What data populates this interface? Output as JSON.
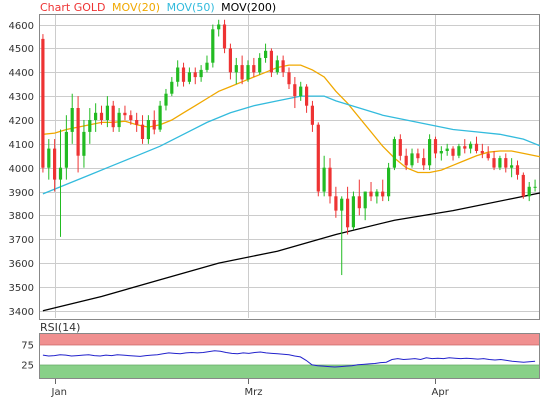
{
  "header": {
    "chart_label": "Chart GOLD",
    "legend": [
      {
        "label": "MOV(20)",
        "color": "#f0a800"
      },
      {
        "label": "MOV(50)",
        "color": "#33bbdd"
      },
      {
        "label": "MOV(200)",
        "color": "#000000"
      }
    ]
  },
  "rsi_panel": {
    "label": "RSI(14)",
    "ticks": [
      "75",
      "25"
    ],
    "overbought": 75,
    "oversold": 25,
    "line_color": "#2222cc",
    "overbought_color": "#f09090",
    "oversold_color": "#88d088"
  },
  "colors": {
    "up": "#22bb22",
    "down": "#ee3333",
    "grid": "#cccccc",
    "axis": "#666666"
  },
  "chart_data": {
    "type": "candlestick",
    "title": "Chart GOLD",
    "ylim": [
      3370,
      4640
    ],
    "y_ticks": [
      3400,
      3500,
      3600,
      3700,
      3800,
      3900,
      4000,
      4100,
      4200,
      4300,
      4400,
      4500,
      4600
    ],
    "x_labels": [
      {
        "label": "Jan",
        "index": 2
      },
      {
        "label": "Mrz",
        "index": 35
      },
      {
        "label": "Apr",
        "index": 67
      }
    ],
    "candles": [
      [
        4540,
        4560,
        3980,
        4000
      ],
      [
        4000,
        4120,
        3950,
        4080
      ],
      [
        4080,
        4120,
        3900,
        3950
      ],
      [
        3950,
        4160,
        3710,
        4000
      ],
      [
        4000,
        4220,
        3950,
        4150
      ],
      [
        4150,
        4310,
        4100,
        4250
      ],
      [
        4250,
        4300,
        3980,
        4050
      ],
      [
        4050,
        4200,
        4000,
        4150
      ],
      [
        4150,
        4250,
        4100,
        4200
      ],
      [
        4200,
        4270,
        4150,
        4230
      ],
      [
        4230,
        4260,
        4180,
        4200
      ],
      [
        4200,
        4300,
        4170,
        4260
      ],
      [
        4260,
        4280,
        4150,
        4170
      ],
      [
        4170,
        4250,
        4150,
        4230
      ],
      [
        4230,
        4260,
        4200,
        4220
      ],
      [
        4220,
        4240,
        4180,
        4200
      ],
      [
        4200,
        4230,
        4150,
        4180
      ],
      [
        4180,
        4220,
        4100,
        4120
      ],
      [
        4120,
        4220,
        4100,
        4200
      ],
      [
        4200,
        4240,
        4140,
        4160
      ],
      [
        4160,
        4280,
        4150,
        4260
      ],
      [
        4260,
        4330,
        4240,
        4310
      ],
      [
        4310,
        4380,
        4300,
        4360
      ],
      [
        4360,
        4450,
        4340,
        4420
      ],
      [
        4420,
        4440,
        4340,
        4360
      ],
      [
        4360,
        4420,
        4350,
        4400
      ],
      [
        4400,
        4420,
        4350,
        4380
      ],
      [
        4380,
        4430,
        4360,
        4410
      ],
      [
        4410,
        4470,
        4400,
        4440
      ],
      [
        4440,
        4600,
        4420,
        4580
      ],
      [
        4580,
        4620,
        4550,
        4600
      ],
      [
        4600,
        4620,
        4480,
        4500
      ],
      [
        4500,
        4520,
        4370,
        4400
      ],
      [
        4400,
        4460,
        4350,
        4430
      ],
      [
        4430,
        4470,
        4350,
        4370
      ],
      [
        4370,
        4450,
        4360,
        4430
      ],
      [
        4430,
        4460,
        4380,
        4400
      ],
      [
        4400,
        4480,
        4390,
        4460
      ],
      [
        4460,
        4520,
        4440,
        4490
      ],
      [
        4490,
        4500,
        4380,
        4400
      ],
      [
        4400,
        4470,
        4390,
        4450
      ],
      [
        4450,
        4470,
        4380,
        4400
      ],
      [
        4400,
        4420,
        4330,
        4350
      ],
      [
        4350,
        4380,
        4250,
        4300
      ],
      [
        4300,
        4360,
        4280,
        4340
      ],
      [
        4340,
        4350,
        4230,
        4260
      ],
      [
        4260,
        4280,
        4150,
        4180
      ],
      [
        4180,
        4190,
        3880,
        3900
      ],
      [
        3900,
        4050,
        3880,
        4000
      ],
      [
        4000,
        4040,
        3850,
        3880
      ],
      [
        3880,
        3920,
        3790,
        3820
      ],
      [
        3820,
        3880,
        3550,
        3870
      ],
      [
        3870,
        3920,
        3720,
        3750
      ],
      [
        3750,
        3900,
        3740,
        3880
      ],
      [
        3880,
        3950,
        3800,
        3830
      ],
      [
        3830,
        3900,
        3780,
        3900
      ],
      [
        3900,
        3940,
        3860,
        3880
      ],
      [
        3880,
        3910,
        3850,
        3900
      ],
      [
        3900,
        3950,
        3860,
        3880
      ],
      [
        3880,
        4020,
        3860,
        4000
      ],
      [
        4000,
        4130,
        3990,
        4120
      ],
      [
        4120,
        4140,
        4030,
        4050
      ],
      [
        4050,
        4080,
        3990,
        4010
      ],
      [
        4010,
        4080,
        4000,
        4060
      ],
      [
        4060,
        4080,
        4020,
        4040
      ],
      [
        4040,
        4080,
        3990,
        4010
      ],
      [
        4010,
        4140,
        3990,
        4120
      ],
      [
        4120,
        4130,
        4040,
        4060
      ],
      [
        4060,
        4090,
        4030,
        4070
      ],
      [
        4070,
        4100,
        4050,
        4080
      ],
      [
        4080,
        4090,
        4030,
        4050
      ],
      [
        4050,
        4100,
        4040,
        4090
      ],
      [
        4090,
        4120,
        4060,
        4080
      ],
      [
        4080,
        4110,
        4060,
        4100
      ],
      [
        4100,
        4130,
        4060,
        4070
      ],
      [
        4070,
        4100,
        4040,
        4060
      ],
      [
        4060,
        4090,
        4030,
        4040
      ],
      [
        4040,
        4070,
        3990,
        4000
      ],
      [
        4000,
        4050,
        3990,
        4040
      ],
      [
        4040,
        4060,
        3980,
        4000
      ],
      [
        4000,
        4040,
        3960,
        4010
      ],
      [
        4010,
        4030,
        3950,
        3970
      ],
      [
        3970,
        3980,
        3870,
        3880
      ],
      [
        3880,
        3940,
        3860,
        3920
      ],
      [
        3920,
        3950,
        3900,
        3920
      ]
    ],
    "series": [
      {
        "name": "MOV(20)",
        "color": "#f0a800",
        "points": [
          [
            0,
            4140
          ],
          [
            2,
            4145
          ],
          [
            4,
            4160
          ],
          [
            6,
            4170
          ],
          [
            8,
            4180
          ],
          [
            10,
            4190
          ],
          [
            12,
            4190
          ],
          [
            14,
            4195
          ],
          [
            16,
            4180
          ],
          [
            18,
            4170
          ],
          [
            20,
            4180
          ],
          [
            22,
            4200
          ],
          [
            24,
            4230
          ],
          [
            26,
            4260
          ],
          [
            28,
            4290
          ],
          [
            30,
            4320
          ],
          [
            32,
            4340
          ],
          [
            34,
            4360
          ],
          [
            36,
            4380
          ],
          [
            38,
            4400
          ],
          [
            40,
            4420
          ],
          [
            42,
            4430
          ],
          [
            44,
            4430
          ],
          [
            46,
            4410
          ],
          [
            48,
            4380
          ],
          [
            50,
            4320
          ],
          [
            52,
            4270
          ],
          [
            54,
            4210
          ],
          [
            56,
            4150
          ],
          [
            58,
            4090
          ],
          [
            60,
            4040
          ],
          [
            62,
            4000
          ],
          [
            64,
            3980
          ],
          [
            66,
            3980
          ],
          [
            68,
            3990
          ],
          [
            70,
            4010
          ],
          [
            72,
            4030
          ],
          [
            74,
            4050
          ],
          [
            76,
            4065
          ],
          [
            78,
            4070
          ],
          [
            80,
            4070
          ],
          [
            82,
            4060
          ],
          [
            84,
            4050
          ],
          [
            86,
            4040
          ],
          [
            88,
            4030
          ]
        ]
      },
      {
        "name": "MOV(50)",
        "color": "#33bbdd",
        "points": [
          [
            0,
            3890
          ],
          [
            4,
            3930
          ],
          [
            8,
            3970
          ],
          [
            12,
            4010
          ],
          [
            16,
            4050
          ],
          [
            20,
            4090
          ],
          [
            24,
            4140
          ],
          [
            28,
            4190
          ],
          [
            32,
            4230
          ],
          [
            36,
            4260
          ],
          [
            40,
            4280
          ],
          [
            44,
            4300
          ],
          [
            48,
            4300
          ],
          [
            50,
            4280
          ],
          [
            54,
            4250
          ],
          [
            58,
            4220
          ],
          [
            62,
            4200
          ],
          [
            66,
            4180
          ],
          [
            70,
            4160
          ],
          [
            74,
            4150
          ],
          [
            78,
            4140
          ],
          [
            82,
            4120
          ],
          [
            86,
            4080
          ],
          [
            88,
            4060
          ]
        ]
      },
      {
        "name": "MOV(200)",
        "color": "#000000",
        "points": [
          [
            0,
            3400
          ],
          [
            10,
            3460
          ],
          [
            20,
            3530
          ],
          [
            30,
            3600
          ],
          [
            40,
            3650
          ],
          [
            50,
            3720
          ],
          [
            60,
            3780
          ],
          [
            70,
            3820
          ],
          [
            80,
            3870
          ],
          [
            88,
            3910
          ]
        ]
      }
    ],
    "rsi": [
      52,
      50,
      51,
      53,
      52,
      50,
      51,
      52,
      53,
      51,
      50,
      52,
      51,
      53,
      52,
      51,
      50,
      49,
      51,
      52,
      53,
      55,
      57,
      56,
      55,
      57,
      58,
      57,
      58,
      60,
      62,
      61,
      58,
      56,
      55,
      57,
      56,
      58,
      59,
      57,
      56,
      55,
      54,
      53,
      50,
      48,
      40,
      30,
      28,
      27,
      26,
      25,
      26,
      27,
      28,
      30,
      31,
      32,
      33,
      35,
      36,
      42,
      44,
      42,
      43,
      44,
      42,
      46,
      44,
      45,
      44,
      46,
      45,
      44,
      45,
      44,
      43,
      44,
      42,
      41,
      42,
      40,
      38,
      37,
      36,
      37,
      38
    ]
  }
}
